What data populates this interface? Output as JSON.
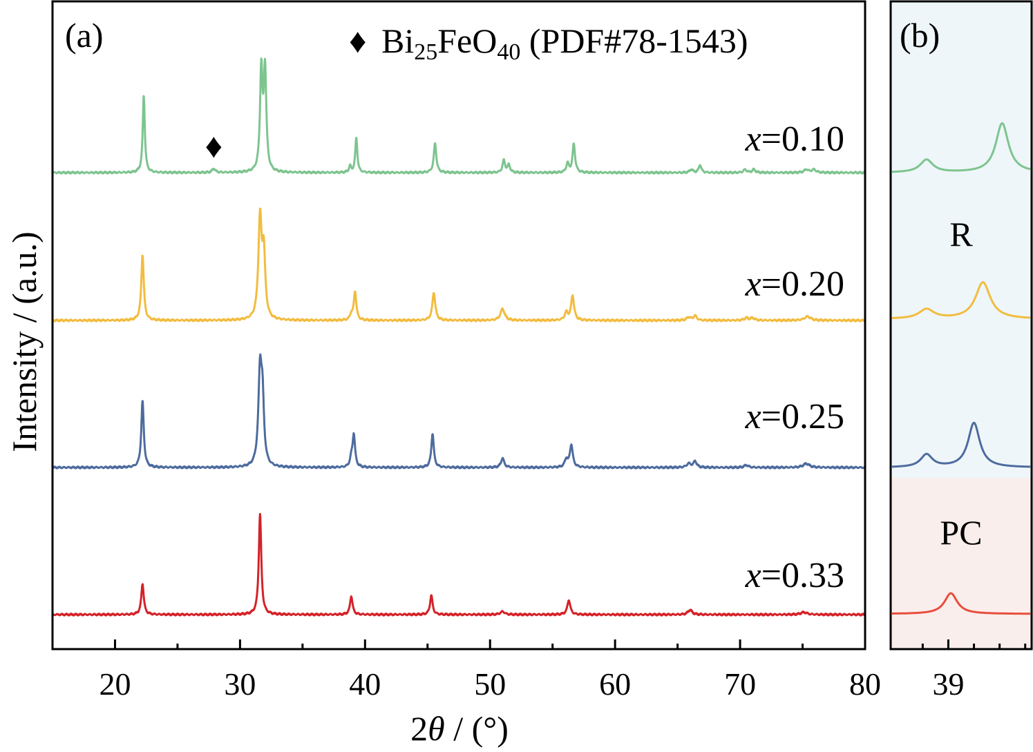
{
  "chart_data": [
    {
      "panel": "(a)",
      "type": "line",
      "xlabel_prefix": "2",
      "xlabel_symbol": "θ",
      "xlabel_suffix": " / (°)",
      "ylabel": "Intensity / (a.u.)",
      "xlim": [
        15,
        80
      ],
      "xticks": [
        20,
        30,
        40,
        50,
        60,
        70,
        80
      ],
      "annotation": {
        "marker": "♦",
        "formula_base": "Bi",
        "formula_sub1": "25",
        "formula_mid": "FeO",
        "formula_sub2": "40",
        "formula_suffix": " (PDF#78-1543)",
        "marked_peak_x": 27.9
      },
      "series": [
        {
          "name": "x=0.10",
          "var": "x",
          "value_text": "=0.10",
          "color": "#7dc48f",
          "offset": 3,
          "peaks": [
            [
              22.3,
              1.0,
              0.1
            ],
            [
              27.9,
              0.05,
              0.15
            ],
            [
              31.7,
              1.3,
              0.12
            ],
            [
              32.0,
              1.3,
              0.12
            ],
            [
              38.8,
              0.08,
              0.1
            ],
            [
              39.3,
              0.45,
              0.1
            ],
            [
              45.6,
              0.38,
              0.12
            ],
            [
              51.1,
              0.16,
              0.12
            ],
            [
              51.5,
              0.1,
              0.12
            ],
            [
              56.2,
              0.12,
              0.12
            ],
            [
              56.7,
              0.37,
              0.12
            ],
            [
              66.1,
              0.04,
              0.15
            ],
            [
              66.8,
              0.1,
              0.12
            ],
            [
              70.4,
              0.04,
              0.15
            ],
            [
              71.1,
              0.04,
              0.15
            ],
            [
              75.3,
              0.04,
              0.2
            ],
            [
              75.9,
              0.04,
              0.2
            ]
          ]
        },
        {
          "name": "x=0.20",
          "var": "x",
          "value_text": "=0.20",
          "color": "#f2bc3f",
          "offset": 2,
          "peaks": [
            [
              22.2,
              0.85,
              0.12
            ],
            [
              31.6,
              1.3,
              0.16
            ],
            [
              31.9,
              0.8,
              0.14
            ],
            [
              38.9,
              0.07,
              0.12
            ],
            [
              39.2,
              0.37,
              0.12
            ],
            [
              45.5,
              0.36,
              0.14
            ],
            [
              51.0,
              0.15,
              0.2
            ],
            [
              56.1,
              0.1,
              0.15
            ],
            [
              56.6,
              0.32,
              0.14
            ],
            [
              65.9,
              0.04,
              0.2
            ],
            [
              66.4,
              0.06,
              0.15
            ],
            [
              70.5,
              0.03,
              0.2
            ],
            [
              71.0,
              0.03,
              0.2
            ],
            [
              75.4,
              0.05,
              0.3
            ]
          ]
        },
        {
          "name": "x=0.25",
          "var": "x",
          "value_text": "=0.25",
          "color": "#4d6b9e",
          "offset": 1,
          "peaks": [
            [
              22.2,
              0.86,
              0.12
            ],
            [
              31.6,
              1.2,
              0.16
            ],
            [
              31.8,
              0.75,
              0.14
            ],
            [
              38.9,
              0.1,
              0.12
            ],
            [
              39.1,
              0.42,
              0.12
            ],
            [
              45.4,
              0.44,
              0.12
            ],
            [
              51.0,
              0.12,
              0.15
            ],
            [
              56.1,
              0.1,
              0.15
            ],
            [
              56.5,
              0.29,
              0.14
            ],
            [
              65.9,
              0.05,
              0.2
            ],
            [
              66.4,
              0.08,
              0.15
            ],
            [
              70.5,
              0.03,
              0.2
            ],
            [
              75.3,
              0.05,
              0.3
            ]
          ]
        },
        {
          "name": "x=0.33",
          "var": "x",
          "value_text": "=0.33",
          "color": "#d42228",
          "offset": 0,
          "peaks": [
            [
              22.2,
              0.4,
              0.12
            ],
            [
              31.6,
              1.3,
              0.12
            ],
            [
              38.9,
              0.24,
              0.12
            ],
            [
              45.3,
              0.25,
              0.12
            ],
            [
              51.0,
              0.04,
              0.2
            ],
            [
              56.3,
              0.19,
              0.14
            ],
            [
              66.0,
              0.06,
              0.2
            ],
            [
              75.1,
              0.03,
              0.3
            ]
          ]
        }
      ]
    },
    {
      "panel": "(b)",
      "type": "line",
      "xticks": [
        39
      ],
      "xlim": [
        38.55,
        39.65
      ],
      "regions": [
        {
          "label": "R",
          "color": "#eef6f9"
        },
        {
          "label": "PC",
          "color": "#faeeec"
        }
      ],
      "series": [
        {
          "name": "x=0.10",
          "color": "#7dc48f",
          "peaks": [
            [
              38.83,
              0.16,
              0.06
            ],
            [
              39.42,
              0.62,
              0.06
            ]
          ]
        },
        {
          "name": "x=0.20",
          "color": "#f2bc3f",
          "peaks": [
            [
              38.83,
              0.12,
              0.07
            ],
            [
              39.27,
              0.46,
              0.07
            ]
          ]
        },
        {
          "name": "x=0.25",
          "color": "#4d6b9e",
          "peaks": [
            [
              38.83,
              0.16,
              0.055
            ],
            [
              39.2,
              0.56,
              0.055
            ]
          ]
        },
        {
          "name": "x=0.33",
          "color": "#e84d3d",
          "peaks": [
            [
              39.02,
              0.26,
              0.06
            ]
          ]
        }
      ]
    }
  ]
}
